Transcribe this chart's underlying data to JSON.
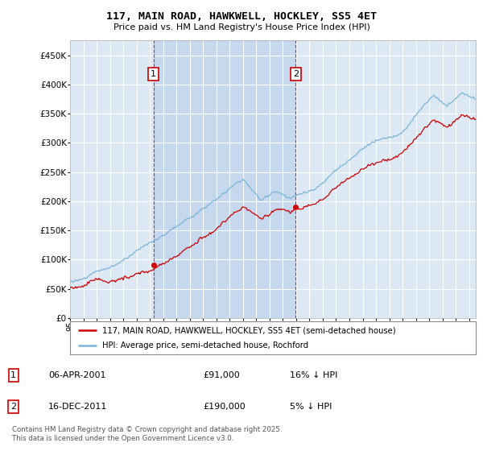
{
  "title": "117, MAIN ROAD, HAWKWELL, HOCKLEY, SS5 4ET",
  "subtitle": "Price paid vs. HM Land Registry's House Price Index (HPI)",
  "ylim": [
    0,
    475000
  ],
  "yticks": [
    0,
    50000,
    100000,
    150000,
    200000,
    250000,
    300000,
    350000,
    400000,
    450000
  ],
  "ytick_labels": [
    "£0",
    "£50K",
    "£100K",
    "£150K",
    "£200K",
    "£250K",
    "£300K",
    "£350K",
    "£400K",
    "£450K"
  ],
  "background_color": "#ffffff",
  "plot_bg_color": "#dce9f5",
  "shade_color": "#c5d8ee",
  "grid_color": "#ffffff",
  "hpi_color": "#7ab3d8",
  "price_color": "#cc0000",
  "sale1_t": 2001.27,
  "sale1_p": 91000,
  "sale2_t": 2011.96,
  "sale2_p": 190000,
  "annotation1_label": "1",
  "annotation1_date": "06-APR-2001",
  "annotation1_price": "£91,000",
  "annotation1_hpi_pct": "16% ↓ HPI",
  "annotation2_label": "2",
  "annotation2_date": "16-DEC-2011",
  "annotation2_price": "£190,000",
  "annotation2_hpi_pct": "5% ↓ HPI",
  "legend_line1": "117, MAIN ROAD, HAWKWELL, HOCKLEY, SS5 4ET (semi-detached house)",
  "legend_line2": "HPI: Average price, semi-detached house, Rochford",
  "footer": "Contains HM Land Registry data © Crown copyright and database right 2025.\nThis data is licensed under the Open Government Licence v3.0.",
  "xmin": 1995.0,
  "xmax": 2025.5
}
